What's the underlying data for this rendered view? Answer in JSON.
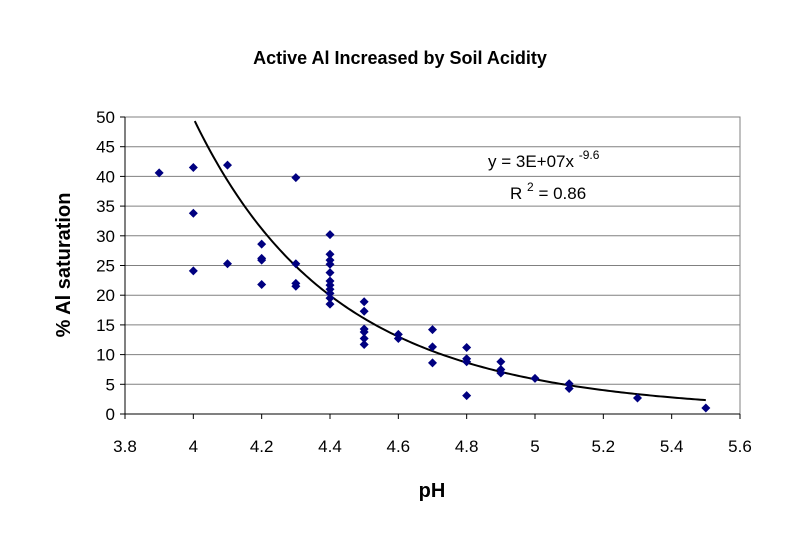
{
  "chart_data": {
    "type": "scatter",
    "title": "Active Al Increased by Soil Acidity",
    "xlabel": "pH",
    "ylabel": "% Al saturation",
    "xlim": [
      3.8,
      5.6
    ],
    "ylim": [
      0,
      50
    ],
    "x_ticks": [
      3.8,
      4,
      4.2,
      4.4,
      4.6,
      4.8,
      5,
      5.2,
      5.4,
      5.6
    ],
    "x_tick_labels": [
      "3.8",
      "4",
      "4.2",
      "4.4",
      "4.6",
      "4.8",
      "5",
      "5.2",
      "5.4",
      "5.6"
    ],
    "y_ticks": [
      0,
      5,
      10,
      15,
      20,
      25,
      30,
      35,
      40,
      45,
      50
    ],
    "y_tick_labels": [
      "0",
      "5",
      "10",
      "15",
      "20",
      "25",
      "30",
      "35",
      "40",
      "45",
      "50"
    ],
    "grid": "horizontal",
    "marker_color": "#000080",
    "trendline_color": "#000000",
    "series": [
      {
        "name": "% Al saturation",
        "points": [
          [
            3.9,
            40.6
          ],
          [
            4.0,
            41.5
          ],
          [
            4.0,
            33.8
          ],
          [
            4.0,
            24.1
          ],
          [
            4.1,
            41.9
          ],
          [
            4.1,
            25.3
          ],
          [
            4.2,
            28.6
          ],
          [
            4.2,
            26.2
          ],
          [
            4.2,
            25.9
          ],
          [
            4.2,
            21.8
          ],
          [
            4.3,
            39.8
          ],
          [
            4.3,
            25.3
          ],
          [
            4.3,
            22.0
          ],
          [
            4.3,
            21.5
          ],
          [
            4.4,
            30.2
          ],
          [
            4.4,
            26.9
          ],
          [
            4.4,
            25.9
          ],
          [
            4.4,
            25.2
          ],
          [
            4.4,
            23.8
          ],
          [
            4.4,
            22.4
          ],
          [
            4.4,
            21.7
          ],
          [
            4.4,
            21.0
          ],
          [
            4.4,
            20.3
          ],
          [
            4.4,
            19.5
          ],
          [
            4.4,
            18.5
          ],
          [
            4.5,
            18.9
          ],
          [
            4.5,
            17.3
          ],
          [
            4.5,
            14.3
          ],
          [
            4.5,
            13.8
          ],
          [
            4.5,
            12.7
          ],
          [
            4.5,
            11.7
          ],
          [
            4.6,
            13.4
          ],
          [
            4.6,
            12.7
          ],
          [
            4.7,
            14.2
          ],
          [
            4.7,
            11.3
          ],
          [
            4.7,
            8.6
          ],
          [
            4.8,
            11.2
          ],
          [
            4.8,
            9.3
          ],
          [
            4.8,
            8.8
          ],
          [
            4.8,
            3.1
          ],
          [
            4.9,
            8.8
          ],
          [
            4.9,
            7.5
          ],
          [
            4.9,
            6.9
          ],
          [
            5.0,
            6.0
          ],
          [
            5.1,
            5.1
          ],
          [
            5.1,
            4.3
          ],
          [
            5.3,
            2.7
          ],
          [
            5.5,
            1.0
          ]
        ]
      }
    ],
    "trendline": {
      "type": "power",
      "coefficient": 30000000,
      "exponent": -9.6,
      "x_range": [
        3.95,
        5.5
      ],
      "equation_text": "y = 3E+07x",
      "equation_exponent_text": "-9.6",
      "r2_prefix": "R",
      "r2_superscript": "2",
      "r2_value_text": " = 0.86"
    }
  }
}
